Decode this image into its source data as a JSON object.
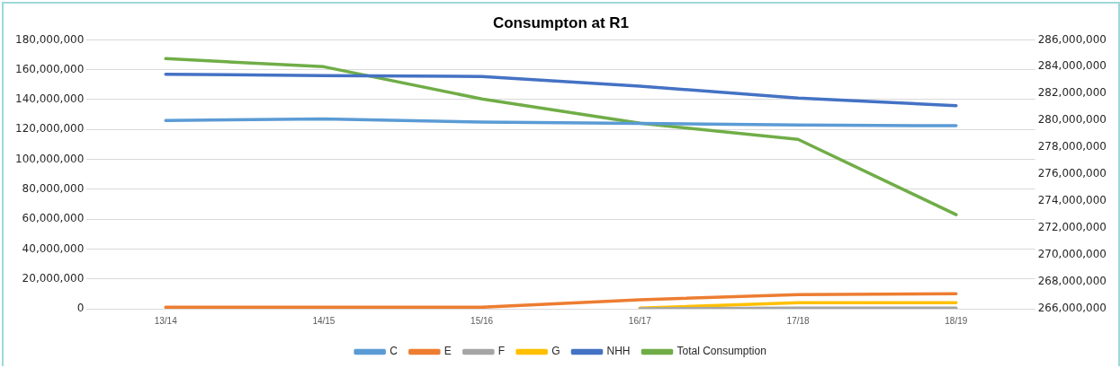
{
  "chart_data": {
    "type": "line",
    "title": "Consumpton at R1",
    "categories": [
      "13/14",
      "14/15",
      "15/16",
      "16/17",
      "17/18",
      "18/19"
    ],
    "series": [
      {
        "name": "C",
        "color": "#5b9bd5",
        "values": [
          126000000,
          127000000,
          125000000,
          124000000,
          123000000,
          122500000
        ]
      },
      {
        "name": "E",
        "color": "#ed7d31",
        "values": [
          1000000,
          1000000,
          1000000,
          6000000,
          9500000,
          10000000
        ]
      },
      {
        "name": "F",
        "color": "#a5a5a5",
        "values": [
          null,
          null,
          null,
          0,
          500000,
          500000
        ]
      },
      {
        "name": "G",
        "color": "#ffc000",
        "values": [
          null,
          null,
          null,
          500000,
          4000000,
          4000000
        ]
      },
      {
        "name": "NHH",
        "color": "#4472c4",
        "values": [
          157000000,
          156000000,
          155500000,
          149000000,
          141000000,
          136000000
        ]
      },
      {
        "name": "Total Consumption",
        "color": "#70ad47",
        "axis": "y2",
        "values": [
          284600000,
          284000000,
          281600000,
          279800000,
          278600000,
          273000000
        ]
      }
    ],
    "ylim": [
      0,
      180000000
    ],
    "yticks": [
      0,
      {
        "value": 20000000,
        "label": "20,000,000"
      },
      {
        "value": 40000000,
        "label": "40,000,000"
      },
      {
        "value": 60000000,
        "label": "60,000,000"
      },
      {
        "value": 80000000,
        "label": "80,000,000"
      },
      {
        "value": 100000000,
        "label": "100,000,000"
      },
      {
        "value": 120000000,
        "label": "120,000,000"
      },
      {
        "value": 140000000,
        "label": "140,000,000"
      },
      {
        "value": 160000000,
        "label": "160,000,000"
      },
      {
        "value": 180000000,
        "label": "180,000,000"
      }
    ],
    "y2lim": [
      266000000,
      286000000
    ],
    "y2ticks": [
      {
        "value": 266000000,
        "label": "266,000,000"
      },
      {
        "value": 268000000,
        "label": "268,000,000"
      },
      {
        "value": 270000000,
        "label": "270,000,000"
      },
      {
        "value": 272000000,
        "label": "272,000,000"
      },
      {
        "value": 274000000,
        "label": "274,000,000"
      },
      {
        "value": 276000000,
        "label": "276,000,000"
      },
      {
        "value": 278000000,
        "label": "278,000,000"
      },
      {
        "value": 280000000,
        "label": "280,000,000"
      },
      {
        "value": 282000000,
        "label": "282,000,000"
      },
      {
        "value": 284000000,
        "label": "284,000,000"
      },
      {
        "value": 286000000,
        "label": "286,000,000"
      }
    ],
    "grid": "y",
    "legend": "bottom",
    "marker": "none",
    "line_style": "solid"
  }
}
